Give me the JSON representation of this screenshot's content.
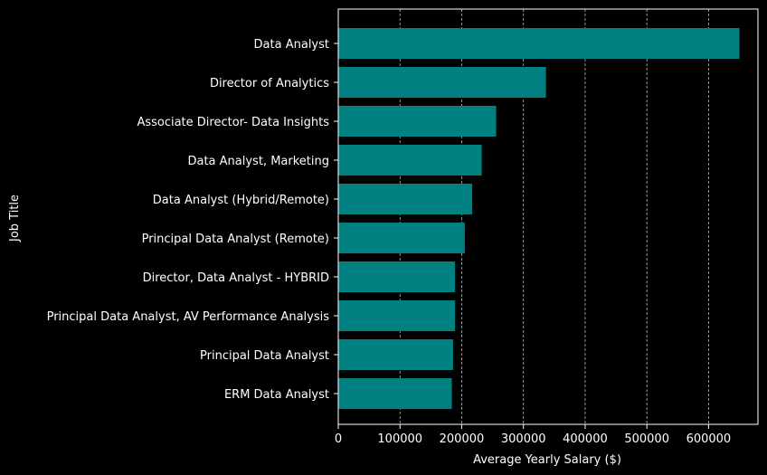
{
  "chart_data": {
    "type": "bar",
    "orientation": "horizontal",
    "title": "",
    "xlabel": "Average Yearly Salary ($)",
    "ylabel": "Job Title",
    "xlim": [
      0,
      680000
    ],
    "xticks": [
      0,
      100000,
      200000,
      300000,
      400000,
      500000,
      600000
    ],
    "grid": {
      "x": true,
      "y": false,
      "style": "dashed"
    },
    "legend": "none",
    "categories": [
      "Data Analyst",
      "Director of Analytics",
      "Associate Director- Data Insights",
      "Data Analyst, Marketing",
      "Data Analyst (Hybrid/Remote)",
      "Principal Data Analyst (Remote)",
      "Director, Data Analyst - HYBRID",
      "Principal Data Analyst, AV Performance Analysis",
      "Principal Data Analyst",
      "ERM Data Analyst"
    ],
    "values": [
      650000,
      336500,
      255800,
      232400,
      217000,
      205000,
      189300,
      189300,
      186000,
      184000
    ]
  },
  "colors": {
    "background": "#000000",
    "bar": "#008080",
    "axes": "#ffffff",
    "grid": "#bbbbbb",
    "text": "#ffffff"
  }
}
